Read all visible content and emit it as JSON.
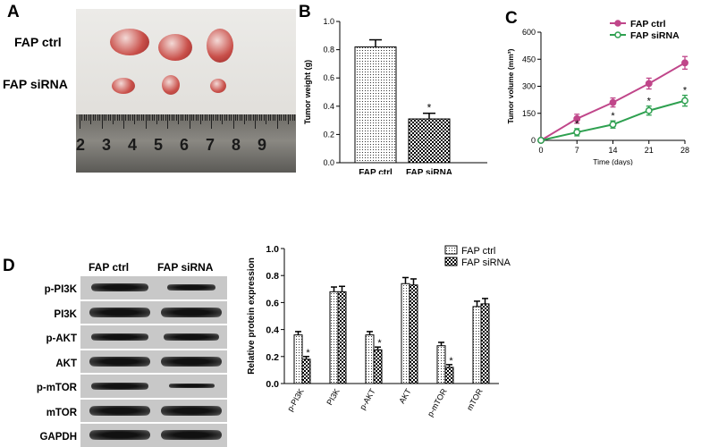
{
  "panels": {
    "a": {
      "letter": "A",
      "rows": [
        "FAP ctrl",
        "FAP siRNA"
      ],
      "ruler_numbers": [
        "2",
        "3",
        "4",
        "5",
        "6",
        "7",
        "8",
        "9"
      ]
    },
    "b": {
      "letter": "B"
    },
    "c": {
      "letter": "C"
    },
    "d": {
      "letter": "D",
      "blot_columns": [
        "FAP ctrl",
        "FAP siRNA"
      ],
      "blot_rows": [
        "p-PI3K",
        "PI3K",
        "p-AKT",
        "AKT",
        "p-mTOR",
        "mTOR",
        "GAPDH"
      ]
    }
  },
  "colors": {
    "ctrl_line": "#c0468a",
    "sirna_line": "#2ea050"
  },
  "chart_data": [
    {
      "type": "bar",
      "panel": "B",
      "categories": [
        "FAP ctrl",
        "FAP siRNA"
      ],
      "values": [
        0.82,
        0.31
      ],
      "errors": [
        0.05,
        0.04
      ],
      "annotations": [
        "",
        "*"
      ],
      "ylabel": "Tumor weight (g)",
      "ylim": [
        0,
        1.0
      ],
      "yticks": [
        "0.0",
        "0.2",
        "0.4",
        "0.6",
        "0.8",
        "1.0"
      ]
    },
    {
      "type": "line",
      "panel": "C",
      "x": [
        0,
        7,
        14,
        21,
        28
      ],
      "xticks": [
        "0",
        "7",
        "14",
        "21",
        "28"
      ],
      "series": [
        {
          "name": "FAP ctrl",
          "values": [
            0,
            120,
            210,
            315,
            430
          ],
          "errors": [
            0,
            25,
            25,
            30,
            35
          ],
          "marker": "filled-circle"
        },
        {
          "name": "FAP siRNA",
          "values": [
            0,
            45,
            88,
            165,
            220
          ],
          "errors": [
            0,
            20,
            20,
            25,
            30
          ],
          "marker": "open-circle",
          "annotations": [
            "",
            "*",
            "*",
            "*",
            "*"
          ]
        }
      ],
      "xlabel": "Time (days)",
      "ylabel": "Tumor volume (mm³)",
      "ylim": [
        0,
        600
      ],
      "yticks": [
        "0",
        "150",
        "300",
        "450",
        "600"
      ],
      "legend": "top-right"
    },
    {
      "type": "bar",
      "panel": "D",
      "categories": [
        "p-PI3K",
        "PI3K",
        "p-AKT",
        "AKT",
        "p-mTOR",
        "mTOR"
      ],
      "series": [
        {
          "name": "FAP ctrl",
          "values": [
            0.36,
            0.68,
            0.36,
            0.74,
            0.28,
            0.57
          ],
          "errors": [
            0.025,
            0.035,
            0.025,
            0.045,
            0.025,
            0.04
          ]
        },
        {
          "name": "FAP siRNA",
          "values": [
            0.18,
            0.68,
            0.25,
            0.73,
            0.12,
            0.59
          ],
          "errors": [
            0.02,
            0.04,
            0.02,
            0.045,
            0.02,
            0.04
          ],
          "annotations": [
            "*",
            "",
            "*",
            "",
            "*",
            ""
          ]
        }
      ],
      "ylabel": "Relative protein expression",
      "ylim": [
        0,
        1.0
      ],
      "yticks": [
        "0.0",
        "0.2",
        "0.4",
        "0.6",
        "0.8",
        "1.0"
      ],
      "legend": "top-right"
    }
  ]
}
